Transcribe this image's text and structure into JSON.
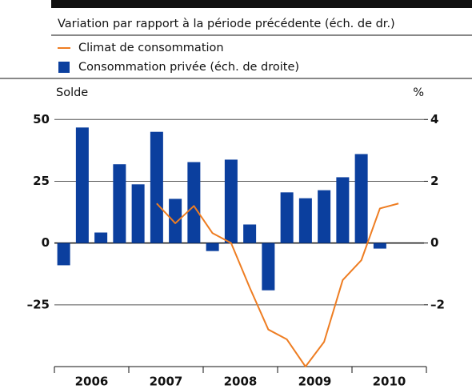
{
  "chart_data": {
    "type": "bar",
    "subtitle": "Variation par rapport à la période précédente (éch. de dr.)",
    "ylabel": "Solde",
    "y2label": "%",
    "categories": [
      null,
      null,
      null,
      null,
      null,
      null,
      null,
      null,
      null,
      null,
      null,
      null,
      null,
      null,
      null,
      null,
      null,
      null,
      null,
      null
    ],
    "year_labels": [
      "2006",
      "2007",
      "2008",
      "2009",
      "2010"
    ],
    "series": [
      {
        "name": "Climat de consommation",
        "type": "line",
        "color": "#ee7d22",
        "values": [
          null,
          null,
          null,
          null,
          null,
          16,
          8,
          15,
          4,
          0,
          -18,
          -35,
          -39,
          -50,
          -40,
          -15,
          -7,
          14,
          16,
          null
        ]
      },
      {
        "name": "Consommation privée (éch. de droite)",
        "type": "bar",
        "axis": "y2",
        "color": "#0b3f9e",
        "values": [
          -0.72,
          3.74,
          0.34,
          2.55,
          1.9,
          3.6,
          1.43,
          2.62,
          -0.26,
          2.7,
          0.6,
          -1.53,
          1.64,
          1.45,
          1.71,
          2.13,
          2.88,
          -0.18,
          null,
          null
        ]
      }
    ],
    "ylim": [
      -50,
      53
    ],
    "yticks": [
      50,
      25,
      0,
      {
        "value": -25,
        "label": "–25"
      }
    ],
    "y2lim": [
      -4,
      4.24
    ],
    "y2ticks": [
      4,
      2,
      0,
      {
        "value": -2,
        "label": "–2"
      }
    ],
    "grid": true
  }
}
